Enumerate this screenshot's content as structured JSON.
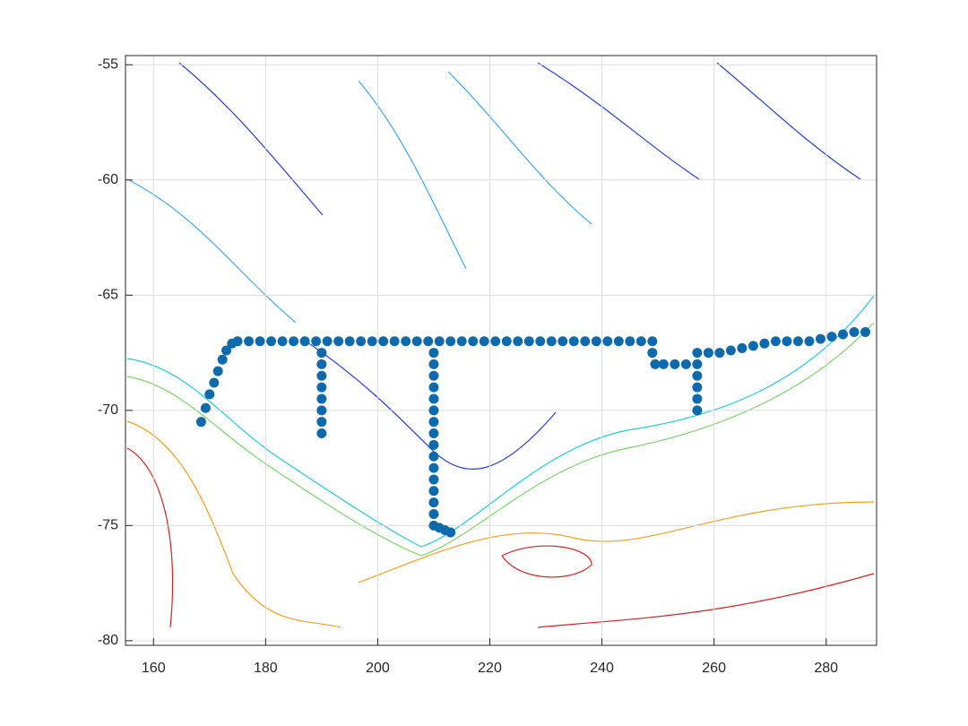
{
  "chart_data": {
    "type": "scatter",
    "xlim": [
      155,
      289
    ],
    "ylim": [
      -80.2,
      -54.6
    ],
    "xticks": [
      160,
      180,
      200,
      220,
      240,
      260,
      280
    ],
    "yticks": [
      -80,
      -75,
      -70,
      -65,
      -60,
      -55
    ],
    "grid": true,
    "color": "#0e6aad",
    "x": [
      168.5,
      169.3,
      170,
      170.8,
      171.5,
      172.3,
      173,
      174,
      175,
      177,
      179,
      181,
      183,
      185,
      187,
      189,
      191,
      193,
      195,
      197,
      199,
      201,
      203,
      205,
      207,
      209,
      211,
      213,
      215,
      217,
      219,
      221,
      223,
      225,
      227,
      229,
      231,
      233,
      235,
      237,
      239,
      241,
      243,
      245,
      247,
      249,
      190,
      190,
      190,
      190,
      190,
      190,
      190,
      190,
      210,
      210,
      210,
      210,
      210,
      210,
      210,
      210,
      210,
      210,
      210,
      210,
      210,
      210,
      210,
      210,
      211,
      212,
      213,
      249,
      249.5,
      251,
      253,
      255,
      257,
      257,
      257,
      257,
      257,
      257,
      259,
      261,
      263,
      265,
      267,
      269,
      271,
      273,
      275,
      277,
      279,
      281,
      283,
      285,
      287
    ],
    "y": [
      -70.5,
      -69.9,
      -69.3,
      -68.8,
      -68.3,
      -67.8,
      -67.4,
      -67.1,
      -67,
      -67,
      -67,
      -67,
      -67,
      -67,
      -67,
      -67,
      -67,
      -67,
      -67,
      -67,
      -67,
      -67,
      -67,
      -67,
      -67,
      -67,
      -67,
      -67,
      -67,
      -67,
      -67,
      -67,
      -67,
      -67,
      -67,
      -67,
      -67,
      -67,
      -67,
      -67,
      -67,
      -67,
      -67,
      -67,
      -67,
      -67,
      -67.5,
      -68,
      -68.5,
      -69,
      -69.5,
      -70,
      -70.5,
      -71,
      -67.5,
      -68,
      -68.5,
      -69,
      -69.5,
      -70,
      -70.5,
      -71,
      -71.5,
      -72,
      -72.5,
      -73,
      -73.5,
      -74,
      -74.5,
      -75,
      -75.1,
      -75.2,
      -75.3,
      -67.5,
      -68,
      -68,
      -68,
      -68,
      -68,
      -68.5,
      -69,
      -69.5,
      -70,
      -67.5,
      -67.5,
      -67.5,
      -67.4,
      -67.3,
      -67.2,
      -67.1,
      -67,
      -67,
      -67,
      -67,
      -66.9,
      -66.8,
      -66.7,
      -66.6,
      -66.6
    ]
  }
}
